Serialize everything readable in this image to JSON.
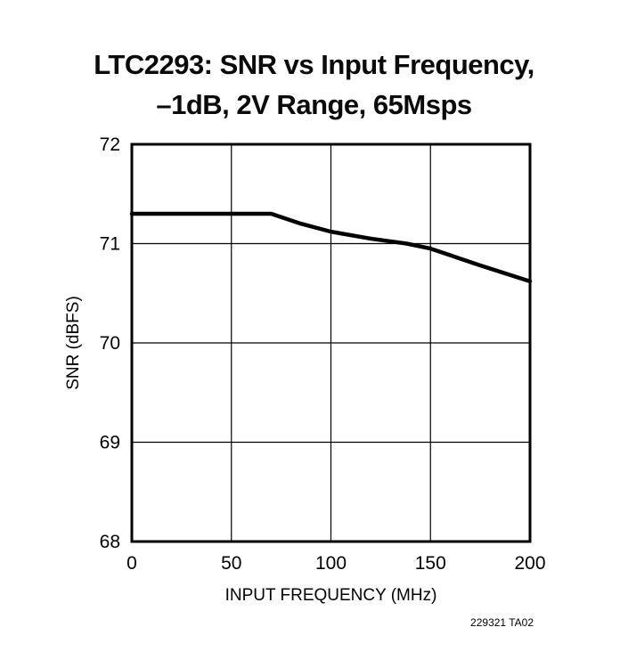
{
  "title": {
    "line1": "LTC2293: SNR vs Input Frequency,",
    "line2": "–1dB, 2V Range, 65Msps"
  },
  "footnote": "229321 TA02",
  "chart_data": {
    "type": "line",
    "title": "LTC2293: SNR vs Input Frequency, –1dB, 2V Range, 65Msps",
    "xlabel": "INPUT FREQUENCY (MHz)",
    "ylabel": "SNR (dBFS)",
    "xlim": [
      0,
      200
    ],
    "ylim": [
      68,
      72
    ],
    "xticks": [
      0,
      50,
      100,
      150,
      200
    ],
    "yticks": [
      68,
      69,
      70,
      71,
      72
    ],
    "grid": true,
    "legend": "none",
    "line_color": "#000000",
    "series": [
      {
        "name": "SNR (dBFS)",
        "points": [
          [
            0,
            71.3
          ],
          [
            30,
            71.3
          ],
          [
            55,
            71.3
          ],
          [
            70,
            71.3
          ],
          [
            85,
            71.2
          ],
          [
            100,
            71.12
          ],
          [
            120,
            71.05
          ],
          [
            138,
            71.0
          ],
          [
            150,
            70.95
          ],
          [
            175,
            70.78
          ],
          [
            200,
            70.62
          ]
        ]
      }
    ]
  }
}
